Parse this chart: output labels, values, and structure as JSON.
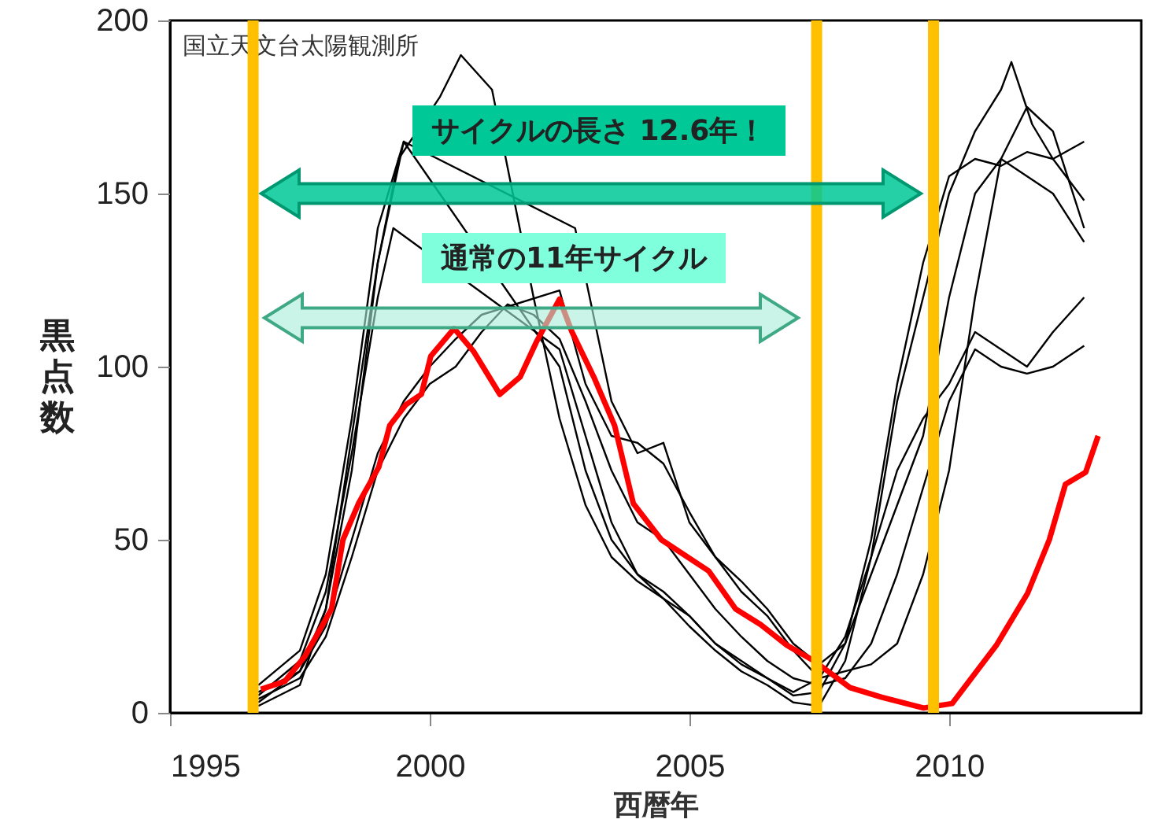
{
  "chart_data": {
    "type": "line",
    "xlabel": "西暦年",
    "ylabel": "黒点数",
    "annotations": [
      "国立天文台太陽観測所",
      "サイクルの長さ 12.6年！",
      "通常の11年サイクル"
    ],
    "xlim": [
      1995,
      2013.7
    ],
    "ylim": [
      0,
      200
    ],
    "xticks": [
      1995,
      2000,
      2005,
      2010
    ],
    "yticks": [
      0,
      50,
      100,
      150,
      200
    ],
    "ref_lines": [
      {
        "axis": "x",
        "value": 1996.6,
        "color": "#ffc000"
      },
      {
        "axis": "x",
        "value": 2007.45,
        "color": "#ffc000"
      },
      {
        "axis": "x",
        "value": 2009.7,
        "color": "#ffc000"
      }
    ],
    "series": [
      {
        "color": "#000000",
        "x": [
          1996.7,
          1997.5,
          1998.0,
          1998.5,
          1999.0,
          1999.4,
          2000.2,
          2000.6,
          2001.2,
          2002.0,
          2002.5,
          2003.0,
          2003.5,
          2004.0,
          2004.5,
          2005.0,
          2005.5,
          2006.0,
          2006.5,
          2007.0,
          2007.5,
          2008.0,
          2008.5,
          2009.0,
          2009.5,
          2010.0,
          2010.5,
          2011.0,
          2011.2,
          2011.6,
          2012.0,
          2012.6
        ],
        "values": [
          3,
          12,
          30,
          70,
          130,
          160,
          178,
          190,
          180,
          120,
          85,
          60,
          45,
          38,
          33,
          25,
          18,
          12,
          8,
          3,
          2,
          15,
          45,
          90,
          120,
          150,
          168,
          180,
          188,
          170,
          160,
          148
        ]
      },
      {
        "color": "#000000",
        "x": [
          1996.7,
          1997.5,
          1998.0,
          1998.5,
          1999.0,
          1999.5,
          2002.8,
          2003.5,
          2004.0,
          2004.5,
          2005.0,
          2005.5,
          2006.0,
          2006.5,
          2007.0,
          2007.5,
          2008.0,
          2008.5,
          2009.0,
          2009.5,
          2010.0,
          2010.5,
          2011.0,
          2011.5,
          2012.0,
          2012.6
        ],
        "values": [
          8,
          18,
          40,
          85,
          140,
          165,
          140,
          90,
          75,
          78,
          55,
          45,
          38,
          30,
          20,
          14,
          20,
          50,
          95,
          130,
          155,
          160,
          158,
          162,
          160,
          165
        ]
      },
      {
        "color": "#000000",
        "x": [
          1996.7,
          1997.5,
          1998.0,
          1998.5,
          1999.0,
          1999.3,
          2002.5,
          2003.0,
          2003.5,
          2004.0,
          2004.5,
          2005.0,
          2005.5,
          2006.0,
          2006.5,
          2007.0,
          2007.5,
          2008.0,
          2008.5,
          2009.0,
          2009.5,
          2010.0,
          2010.5,
          2011.0,
          2011.5,
          2012.0,
          2012.6
        ],
        "values": [
          5,
          15,
          35,
          75,
          120,
          140,
          105,
          80,
          55,
          40,
          35,
          28,
          20,
          15,
          10,
          5,
          6,
          20,
          40,
          60,
          80,
          120,
          150,
          160,
          155,
          150,
          136
        ]
      },
      {
        "color": "#000000",
        "x": [
          1996.7,
          1997.5,
          1998.0,
          1998.5,
          1999.0,
          1999.5,
          2000.0,
          2000.5,
          2001.0,
          2002.5,
          2003.0,
          2003.5,
          2004.0,
          2004.5,
          2005.0,
          2005.5,
          2006.0,
          2006.5,
          2007.0,
          2007.5,
          2008.0,
          2008.5,
          2009.0,
          2009.5,
          2010.0,
          2010.5,
          2011.0,
          2011.5,
          2012.0,
          2012.6
        ],
        "values": [
          6,
          12,
          25,
          50,
          75,
          90,
          100,
          108,
          115,
          122,
          95,
          80,
          78,
          72,
          58,
          45,
          35,
          28,
          18,
          10,
          22,
          45,
          70,
          85,
          95,
          110,
          105,
          100,
          110,
          120
        ]
      },
      {
        "color": "#000000",
        "x": [
          1996.7,
          1997.5,
          1998.0,
          1998.5,
          1999.0,
          1999.5,
          2000.0,
          2000.5,
          2001.0,
          2001.5,
          2002.0,
          2002.5,
          2003.0,
          2003.5,
          2004.0,
          2004.5,
          2005.0,
          2005.5,
          2006.0,
          2006.5,
          2007.0,
          2007.5,
          2008.0,
          2008.5,
          2009.0,
          2009.5,
          2010.0,
          2010.5,
          2011.0,
          2011.5,
          2012.0,
          2012.6
        ],
        "values": [
          4,
          10,
          22,
          45,
          70,
          85,
          95,
          100,
          110,
          118,
          115,
          108,
          90,
          70,
          55,
          50,
          40,
          30,
          22,
          15,
          10,
          8,
          10,
          20,
          40,
          65,
          90,
          105,
          100,
          98,
          100,
          106
        ]
      },
      {
        "color": "#000000",
        "x": [
          1996.7,
          1997.5,
          1998.0,
          1998.5,
          1999.0,
          1999.5,
          2002.5,
          2003.0,
          2003.5,
          2004.0,
          2004.5,
          2005.0,
          2005.5,
          2006.0,
          2006.5,
          2007.0,
          2007.5,
          2008.0,
          2008.5,
          2009.0,
          2009.5,
          2010.0,
          2010.5,
          2011.0,
          2011.5,
          2012.0,
          2012.6
        ],
        "values": [
          2,
          8,
          30,
          80,
          130,
          165,
          100,
          70,
          50,
          40,
          33,
          28,
          20,
          14,
          10,
          6,
          10,
          12,
          14,
          20,
          40,
          70,
          120,
          160,
          175,
          168,
          140
        ]
      },
      {
        "color": "#ff0000",
        "x": [
          1996.75,
          1997.21,
          1997.6,
          1998.11,
          1998.33,
          1998.63,
          1999.02,
          1999.23,
          1999.54,
          1999.84,
          2000.02,
          2000.47,
          2000.84,
          2001.35,
          2001.74,
          2002.05,
          2002.5,
          2002.74,
          2003.16,
          2003.56,
          2003.92,
          2004.46,
          2005.37,
          2005.89,
          2006.37,
          2006.88,
          2007.4,
          2008.09,
          2008.7,
          2009.51,
          2010.06,
          2010.91,
          2011.51,
          2011.93,
          2012.24,
          2012.63,
          2012.87
        ],
        "values": [
          6.8,
          9.1,
          16.4,
          30,
          50,
          60.5,
          71,
          83,
          89,
          92,
          103,
          111,
          104.5,
          92,
          97,
          107,
          119.5,
          110,
          97,
          83,
          60.5,
          50,
          41,
          30,
          25.5,
          19.5,
          15,
          7.3,
          4.5,
          1.4,
          2.7,
          19.5,
          34.5,
          50,
          66,
          69.5,
          80
        ]
      }
    ]
  }
}
